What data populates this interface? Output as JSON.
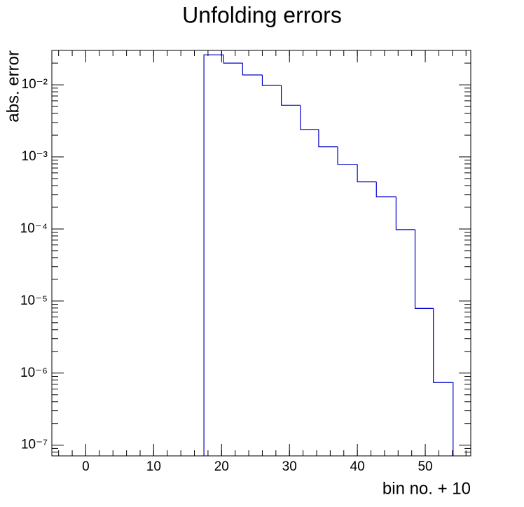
{
  "chart_data": {
    "type": "histogram",
    "title": "Unfolding errors",
    "xlabel": "bin no. + 10",
    "ylabel": "abs. error",
    "bins": [
      17.4,
      20.3,
      23.1,
      26.0,
      28.8,
      31.6,
      34.3,
      37.1,
      40.0,
      42.8,
      45.7,
      48.5,
      51.2,
      54.1
    ],
    "values": [
      0.026,
      0.02,
      0.0137,
      0.0098,
      0.0052,
      0.0024,
      0.00138,
      0.00079,
      0.00045,
      0.00028,
      9.8e-05,
      7.9e-06,
      7.4e-07
    ],
    "color": "#0000cc",
    "xlim": [
      -5,
      56.7
    ],
    "xticks": [
      0,
      10,
      20,
      30,
      40,
      50
    ],
    "ylim": [
      7.1e-08,
      0.03
    ],
    "log_y": true,
    "yticks": [
      {
        "value": 1e-07,
        "label": "10⁻⁷"
      },
      {
        "value": 1e-06,
        "label": "10⁻⁶"
      },
      {
        "value": 1e-05,
        "label": "10⁻⁵"
      },
      {
        "value": 0.0001,
        "label": "10⁻⁴"
      },
      {
        "value": 0.001,
        "label": "10⁻³"
      },
      {
        "value": 0.01,
        "label": "10⁻²"
      }
    ]
  }
}
